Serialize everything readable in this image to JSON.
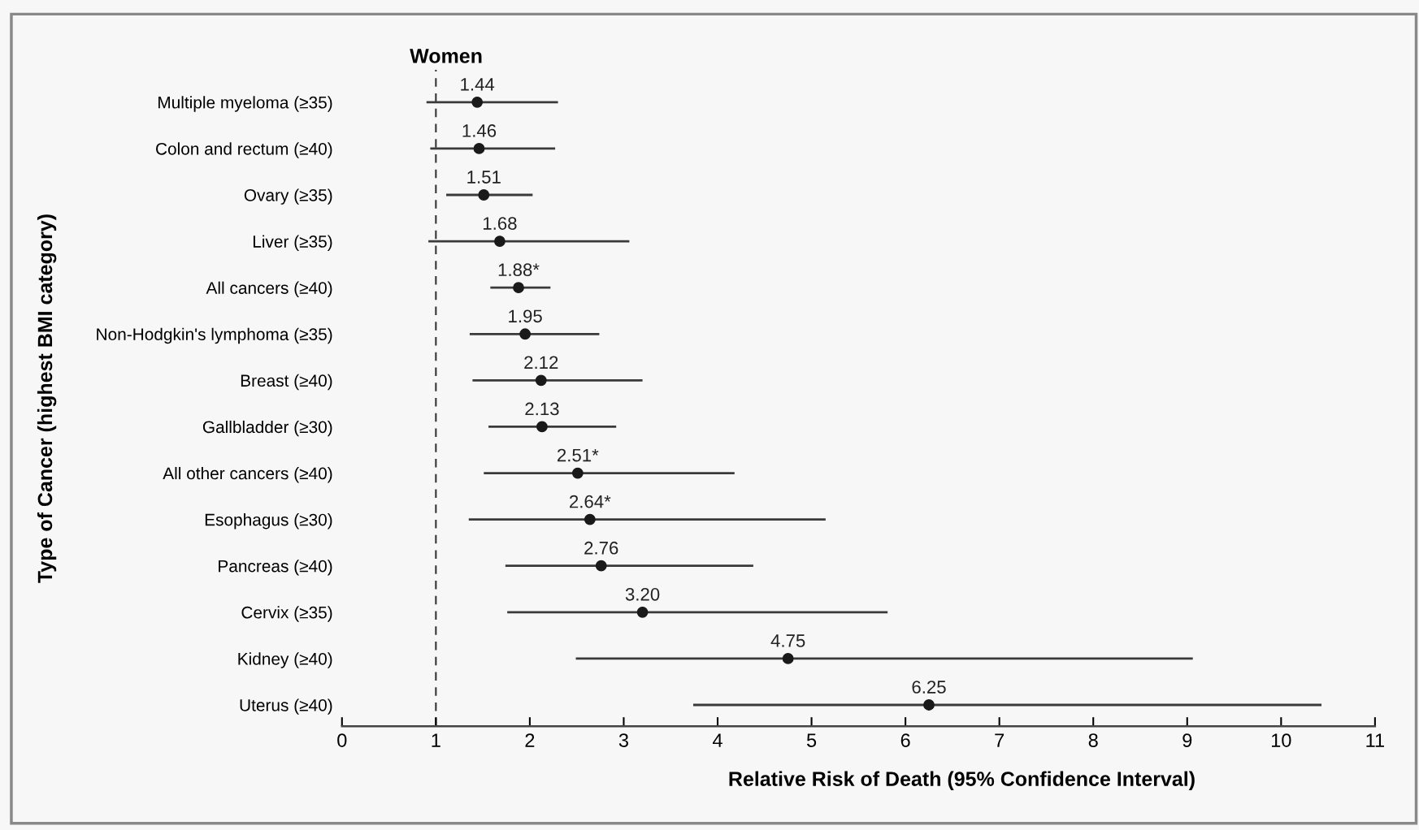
{
  "chart_data": {
    "type": "scatter",
    "orientation": "horizontal",
    "title": "Women",
    "xlabel": "Relative Risk of Death (95% Confidence Interval)",
    "ylabel": "Type of Cancer (highest BMI category)",
    "categories": [
      "Multiple myeloma (≥35)",
      "Colon and rectum (≥40)",
      "Ovary (≥35)",
      "Liver (≥35)",
      "All cancers (≥40)",
      "Non-Hodgkin's lymphoma (≥35)",
      "Breast (≥40)",
      "Gallbladder (≥30)",
      "All other cancers (≥40)",
      "Esophagus (≥30)",
      "Pancreas (≥40)",
      "Cervix (≥35)",
      "Kidney (≥40)",
      "Uterus (≥40)"
    ],
    "values": [
      1.44,
      1.46,
      1.51,
      1.68,
      1.88,
      1.95,
      2.12,
      2.13,
      2.51,
      2.64,
      2.76,
      3.2,
      4.75,
      6.25
    ],
    "errors": [
      [
        0.9,
        2.3
      ],
      [
        0.94,
        2.27
      ],
      [
        1.11,
        2.03
      ],
      [
        0.92,
        3.06
      ],
      [
        1.58,
        2.22
      ],
      [
        1.36,
        2.74
      ],
      [
        1.39,
        3.2
      ],
      [
        1.56,
        2.92
      ],
      [
        1.51,
        4.18
      ],
      [
        1.35,
        5.15
      ],
      [
        1.74,
        4.38
      ],
      [
        1.76,
        5.81
      ],
      [
        2.49,
        9.06
      ],
      [
        3.74,
        10.43
      ]
    ],
    "value_labels": [
      "1.44",
      "1.46",
      "1.51",
      "1.68",
      "1.88*",
      "1.95",
      "2.12",
      "2.13",
      "2.51*",
      "2.64*",
      "2.76",
      "3.20",
      "4.75",
      "6.25"
    ],
    "color": "#1a1a1a",
    "marker": "circle",
    "grid": false,
    "legend": false,
    "xlim": [
      0,
      11
    ],
    "xticks": [
      0,
      1,
      2,
      3,
      4,
      5,
      6,
      7,
      8,
      9,
      10,
      11
    ],
    "ref_lines": [
      {
        "axis": "x",
        "value": 1,
        "line_style": "dashed",
        "color": "#333333"
      }
    ]
  }
}
